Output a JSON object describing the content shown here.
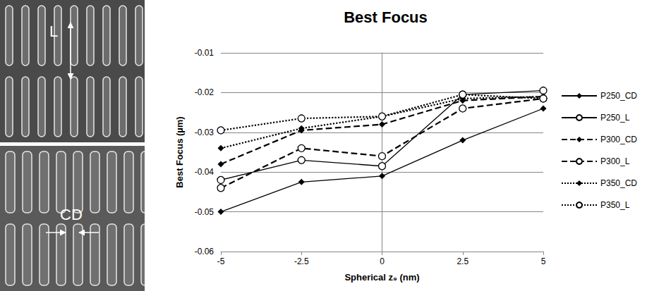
{
  "chart_data": {
    "type": "line",
    "title": "Best Focus",
    "x_label": "Spherical z₉ (nm)",
    "y_label": "Best Focus (µm)",
    "x": [
      -5,
      -2.5,
      0,
      2.5,
      5
    ],
    "xlim": [
      -5,
      5
    ],
    "xticks": [
      -5,
      -2.5,
      0,
      2.5,
      5
    ],
    "ylim": [
      -0.06,
      -0.01
    ],
    "yticks": [
      -0.06,
      -0.05,
      -0.04,
      -0.03,
      -0.02,
      -0.01
    ],
    "grid": true,
    "legend": "right",
    "series": [
      {
        "name": "P250_CD",
        "color": "#000000",
        "marker": "diamond",
        "line_style": "solid",
        "values": [
          -0.05,
          -0.0425,
          -0.041,
          -0.032,
          -0.024
        ]
      },
      {
        "name": "P250_L",
        "color": "#000000",
        "marker": "open_circle",
        "line_style": "solid",
        "values": [
          -0.042,
          -0.037,
          -0.0385,
          -0.0205,
          -0.0195
        ]
      },
      {
        "name": "P300_CD",
        "color": "#000000",
        "marker": "diamond",
        "line_style": "dashed",
        "values": [
          -0.038,
          -0.0295,
          -0.028,
          -0.022,
          -0.021
        ]
      },
      {
        "name": "P300_L",
        "color": "#000000",
        "marker": "open_circle",
        "line_style": "dashed",
        "values": [
          -0.044,
          -0.034,
          -0.036,
          -0.024,
          -0.0215
        ]
      },
      {
        "name": "P350_CD",
        "color": "#000000",
        "marker": "diamond",
        "line_style": "dotted",
        "values": [
          -0.034,
          -0.029,
          -0.026,
          -0.0215,
          -0.021
        ]
      },
      {
        "name": "P350_L",
        "color": "#000000",
        "marker": "open_circle",
        "line_style": "dotted",
        "values": [
          -0.0295,
          -0.0265,
          -0.026,
          -0.0205,
          -0.0215
        ]
      }
    ]
  },
  "images": [
    {
      "label": "L"
    },
    {
      "label": "CD"
    }
  ]
}
